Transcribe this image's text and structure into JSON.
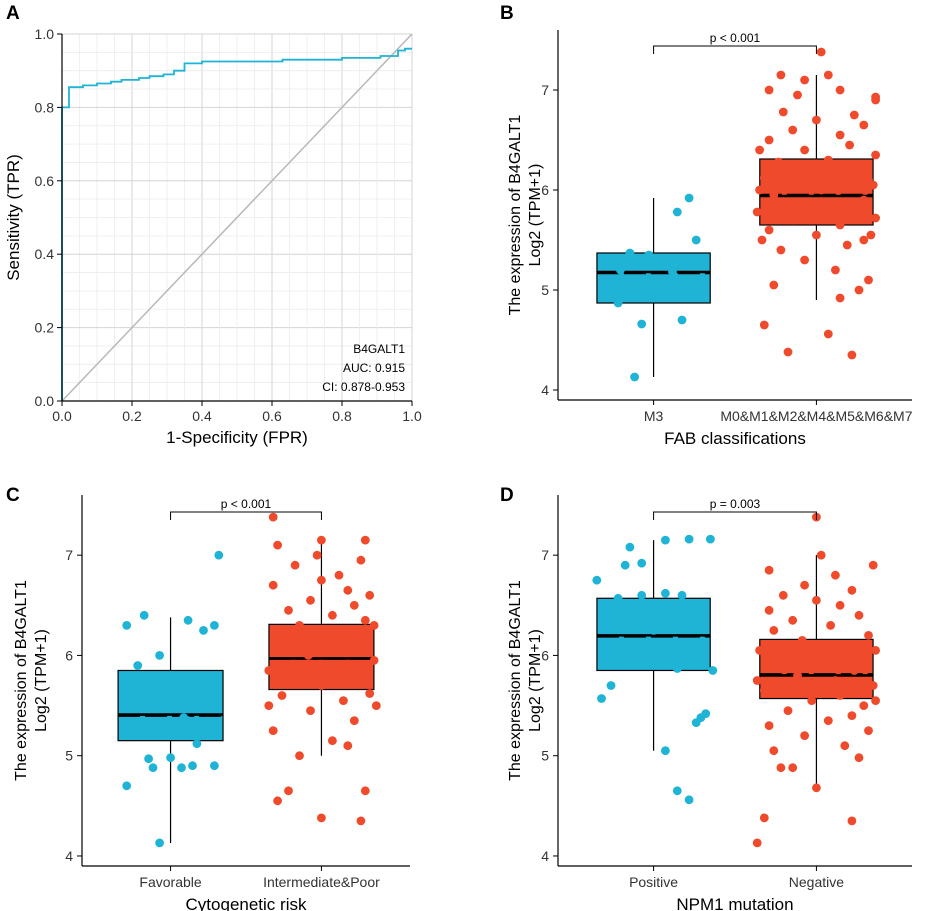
{
  "chart_data": [
    {
      "panel": "A",
      "type": "line",
      "subtype": "roc",
      "xlabel": "1-Specificity (FPR)",
      "ylabel": "Sensitivity (TPR)",
      "xlim": [
        0,
        1
      ],
      "ylim": [
        0,
        1
      ],
      "xticks": [
        "0.0",
        "0.2",
        "0.4",
        "0.6",
        "0.8",
        "1.0"
      ],
      "yticks": [
        "0.0",
        "0.2",
        "0.4",
        "0.6",
        "0.8",
        "1.0"
      ],
      "grid": true,
      "marker": "B4GALT1",
      "auc_text": "AUC: 0.915",
      "ci_text": "CI: 0.878-0.953",
      "roc_color": "#1fb4d6",
      "diagonal_color": "#b8b8b8",
      "roc_points": [
        [
          0,
          0
        ],
        [
          0,
          0.8
        ],
        [
          0.02,
          0.8
        ],
        [
          0.02,
          0.855
        ],
        [
          0.06,
          0.855
        ],
        [
          0.06,
          0.86
        ],
        [
          0.1,
          0.86
        ],
        [
          0.1,
          0.865
        ],
        [
          0.14,
          0.865
        ],
        [
          0.14,
          0.87
        ],
        [
          0.17,
          0.87
        ],
        [
          0.17,
          0.875
        ],
        [
          0.22,
          0.875
        ],
        [
          0.22,
          0.88
        ],
        [
          0.25,
          0.88
        ],
        [
          0.25,
          0.885
        ],
        [
          0.29,
          0.885
        ],
        [
          0.29,
          0.89
        ],
        [
          0.32,
          0.89
        ],
        [
          0.32,
          0.9
        ],
        [
          0.35,
          0.9
        ],
        [
          0.35,
          0.92
        ],
        [
          0.4,
          0.92
        ],
        [
          0.4,
          0.925
        ],
        [
          0.63,
          0.925
        ],
        [
          0.63,
          0.93
        ],
        [
          0.8,
          0.93
        ],
        [
          0.8,
          0.935
        ],
        [
          0.91,
          0.935
        ],
        [
          0.91,
          0.94
        ],
        [
          0.96,
          0.94
        ],
        [
          0.96,
          0.955
        ],
        [
          0.98,
          0.955
        ],
        [
          0.98,
          0.96
        ],
        [
          1,
          0.96
        ]
      ]
    },
    {
      "panel": "B",
      "type": "box",
      "xlabel": "FAB classifications",
      "ylabel_line1": "The expression of B4GALT1",
      "ylabel_line2": "Log2 (TPM+1)",
      "ylim": [
        3.9,
        7.6
      ],
      "yticks": [
        "4",
        "5",
        "6",
        "7"
      ],
      "pvalue": "p < 0.001",
      "groups": [
        {
          "name": "M3",
          "color": "#1fb4d6",
          "q1": 4.87,
          "median": 5.18,
          "mean": 5.17,
          "q3": 5.37,
          "whisker_low": 4.13,
          "whisker_high": 5.92,
          "points": [
            [
              -0.08,
              4.13
            ],
            [
              -0.15,
              4.87
            ],
            [
              -0.12,
              5.0
            ],
            [
              -0.05,
              4.66
            ],
            [
              0.12,
              4.7
            ],
            [
              -0.1,
              5.37
            ],
            [
              -0.02,
              5.35
            ],
            [
              0.05,
              5.3
            ],
            [
              0.08,
              5.18
            ],
            [
              0.18,
              5.5
            ],
            [
              0.1,
              5.78
            ],
            [
              0.15,
              5.92
            ],
            [
              -0.14,
              5.2
            ]
          ]
        },
        {
          "name": "M0&M1&M2&M4&M5&M6&M7",
          "color": "#f04a2c",
          "q1": 5.65,
          "median": 5.94,
          "mean": 5.95,
          "q3": 6.31,
          "whisker_low": 4.9,
          "whisker_high": 7.15,
          "points": [
            [
              -0.12,
              4.38
            ],
            [
              0.15,
              4.35
            ],
            [
              0.05,
              4.56
            ],
            [
              -0.22,
              4.65
            ],
            [
              0.18,
              5.0
            ],
            [
              0.1,
              4.92
            ],
            [
              -0.18,
              5.05
            ],
            [
              0.22,
              5.1
            ],
            [
              -0.05,
              5.3
            ],
            [
              0.08,
              5.2
            ],
            [
              0.13,
              5.45
            ],
            [
              -0.15,
              5.4
            ],
            [
              0.2,
              5.5
            ],
            [
              -0.2,
              5.6
            ],
            [
              0.0,
              5.55
            ],
            [
              0.1,
              5.65
            ],
            [
              -0.1,
              5.7
            ],
            [
              0.25,
              5.72
            ],
            [
              -0.25,
              5.78
            ],
            [
              0.05,
              5.8
            ],
            [
              0.15,
              5.85
            ],
            [
              -0.08,
              5.88
            ],
            [
              0.2,
              5.9
            ],
            [
              -0.18,
              5.95
            ],
            [
              0.02,
              6.0
            ],
            [
              0.12,
              6.02
            ],
            [
              -0.12,
              6.05
            ],
            [
              0.22,
              6.1
            ],
            [
              -0.22,
              6.12
            ],
            [
              0.08,
              6.15
            ],
            [
              -0.03,
              6.2
            ],
            [
              0.18,
              6.25
            ],
            [
              -0.16,
              6.28
            ],
            [
              0.05,
              6.3
            ],
            [
              0.25,
              6.35
            ],
            [
              -0.05,
              6.4
            ],
            [
              0.14,
              6.45
            ],
            [
              -0.2,
              6.5
            ],
            [
              0.1,
              6.55
            ],
            [
              -0.1,
              6.6
            ],
            [
              0.2,
              6.65
            ],
            [
              0.0,
              6.7
            ],
            [
              0.16,
              6.75
            ],
            [
              -0.14,
              6.78
            ],
            [
              0.25,
              6.9
            ],
            [
              0.25,
              6.93
            ],
            [
              -0.08,
              6.95
            ],
            [
              0.1,
              7.0
            ],
            [
              -0.2,
              7.0
            ],
            [
              0.05,
              7.15
            ],
            [
              -0.15,
              7.15
            ],
            [
              -0.05,
              7.1
            ],
            [
              0.02,
              7.38
            ],
            [
              -0.24,
              6.0
            ],
            [
              0.24,
              6.05
            ],
            [
              -0.23,
              5.5
            ],
            [
              0.23,
              5.55
            ],
            [
              -0.24,
              6.4
            ]
          ]
        }
      ]
    },
    {
      "panel": "C",
      "type": "box",
      "xlabel": "Cytogenetic risk",
      "ylabel_line1": "The expression of B4GALT1",
      "ylabel_line2": "Log2 (TPM+1)",
      "ylim": [
        3.9,
        7.6
      ],
      "yticks": [
        "4",
        "5",
        "6",
        "7"
      ],
      "pvalue": "p < 0.001",
      "groups": [
        {
          "name": "Favorable",
          "color": "#1fb4d6",
          "q1": 5.15,
          "median": 5.41,
          "mean": 5.4,
          "q3": 5.85,
          "whisker_low": 4.13,
          "whisker_high": 6.38,
          "points": [
            [
              -0.2,
              4.7
            ],
            [
              -0.05,
              4.13
            ],
            [
              -0.08,
              4.88
            ],
            [
              0.1,
              4.9
            ],
            [
              0.2,
              4.9
            ],
            [
              0.05,
              4.88
            ],
            [
              -0.1,
              4.97
            ],
            [
              0.0,
              4.98
            ],
            [
              0.12,
              5.12
            ],
            [
              0.08,
              5.35
            ],
            [
              0.18,
              5.3
            ],
            [
              -0.15,
              5.9
            ],
            [
              -0.05,
              6.0
            ],
            [
              -0.12,
              6.4
            ],
            [
              -0.2,
              6.3
            ],
            [
              0.08,
              6.35
            ],
            [
              0.2,
              6.3
            ],
            [
              0.22,
              7.0
            ],
            [
              0.15,
              6.25
            ],
            [
              0.06,
              5.38
            ]
          ]
        },
        {
          "name": "Intermediate&Poor",
          "color": "#f04a2c",
          "q1": 5.66,
          "median": 5.97,
          "mean": 5.97,
          "q3": 6.31,
          "whisker_low": 5.0,
          "whisker_high": 7.15,
          "points": [
            [
              -0.15,
              4.65
            ],
            [
              0.0,
              4.38
            ],
            [
              0.18,
              4.35
            ],
            [
              -0.2,
              4.55
            ],
            [
              0.2,
              4.65
            ],
            [
              -0.1,
              5.0
            ],
            [
              0.12,
              5.1
            ],
            [
              0.05,
              5.15
            ],
            [
              -0.22,
              5.25
            ],
            [
              0.15,
              5.35
            ],
            [
              -0.05,
              5.45
            ],
            [
              0.1,
              5.55
            ],
            [
              -0.18,
              5.6
            ],
            [
              0.22,
              5.62
            ],
            [
              0.0,
              5.7
            ],
            [
              -0.12,
              5.75
            ],
            [
              0.16,
              5.8
            ],
            [
              -0.24,
              5.85
            ],
            [
              0.08,
              5.9
            ],
            [
              0.24,
              5.95
            ],
            [
              -0.06,
              6.0
            ],
            [
              0.14,
              6.05
            ],
            [
              -0.16,
              6.1
            ],
            [
              0.2,
              6.12
            ],
            [
              0.02,
              6.18
            ],
            [
              -0.2,
              6.22
            ],
            [
              0.1,
              6.25
            ],
            [
              -0.1,
              6.3
            ],
            [
              0.2,
              6.35
            ],
            [
              0.05,
              6.4
            ],
            [
              -0.15,
              6.45
            ],
            [
              0.15,
              6.5
            ],
            [
              -0.05,
              6.55
            ],
            [
              0.22,
              6.6
            ],
            [
              0.12,
              6.65
            ],
            [
              -0.22,
              6.7
            ],
            [
              0.0,
              6.75
            ],
            [
              0.08,
              6.8
            ],
            [
              -0.12,
              6.9
            ],
            [
              0.18,
              6.95
            ],
            [
              -0.02,
              7.0
            ],
            [
              0.0,
              7.15
            ],
            [
              0.2,
              7.15
            ],
            [
              -0.2,
              7.1
            ],
            [
              -0.22,
              7.38
            ],
            [
              -0.24,
              5.5
            ],
            [
              0.24,
              6.3
            ],
            [
              0.25,
              5.5
            ]
          ]
        }
      ]
    },
    {
      "panel": "D",
      "type": "box",
      "xlabel": "NPM1 mutation",
      "ylabel_line1": "The expression of B4GALT1",
      "ylabel_line2": "Log2 (TPM+1)",
      "ylim": [
        3.9,
        7.6
      ],
      "yticks": [
        "4",
        "5",
        "6",
        "7"
      ],
      "pvalue": "p = 0.003",
      "groups": [
        {
          "name": "Positive",
          "color": "#1fb4d6",
          "q1": 5.85,
          "median": 6.2,
          "mean": 6.19,
          "q3": 6.57,
          "whisker_low": 5.05,
          "whisker_high": 7.15,
          "points": [
            [
              -0.22,
              5.57
            ],
            [
              -0.18,
              5.7
            ],
            [
              0.1,
              4.65
            ],
            [
              0.15,
              4.56
            ],
            [
              0.05,
              5.05
            ],
            [
              0.2,
              5.38
            ],
            [
              0.22,
              5.42
            ],
            [
              0.18,
              5.33
            ],
            [
              0.25,
              5.85
            ],
            [
              0.1,
              5.87
            ],
            [
              -0.2,
              6.1
            ],
            [
              0.0,
              6.25
            ],
            [
              -0.24,
              6.75
            ],
            [
              -0.15,
              6.57
            ],
            [
              -0.05,
              6.6
            ],
            [
              0.05,
              6.62
            ],
            [
              0.12,
              6.6
            ],
            [
              -0.1,
              7.08
            ],
            [
              -0.05,
              6.92
            ],
            [
              0.15,
              7.16
            ],
            [
              0.24,
              7.16
            ],
            [
              0.05,
              7.15
            ],
            [
              -0.12,
              6.9
            ]
          ]
        },
        {
          "name": "Negative",
          "color": "#f04a2c",
          "q1": 5.57,
          "median": 5.8,
          "mean": 5.81,
          "q3": 6.16,
          "whisker_low": 4.68,
          "whisker_high": 7.0,
          "points": [
            [
              -0.25,
              4.13
            ],
            [
              -0.22,
              4.38
            ],
            [
              0.15,
              4.35
            ],
            [
              -0.15,
              4.88
            ],
            [
              -0.1,
              4.88
            ],
            [
              0.0,
              4.68
            ],
            [
              0.18,
              4.98
            ],
            [
              -0.18,
              5.05
            ],
            [
              0.12,
              5.1
            ],
            [
              -0.05,
              5.2
            ],
            [
              0.22,
              5.25
            ],
            [
              -0.2,
              5.3
            ],
            [
              0.05,
              5.35
            ],
            [
              0.15,
              5.4
            ],
            [
              -0.12,
              5.45
            ],
            [
              0.2,
              5.5
            ],
            [
              -0.02,
              5.55
            ],
            [
              0.1,
              5.6
            ],
            [
              -0.22,
              5.65
            ],
            [
              0.24,
              5.7
            ],
            [
              0.08,
              5.75
            ],
            [
              -0.08,
              5.8
            ],
            [
              0.16,
              5.85
            ],
            [
              -0.16,
              5.9
            ],
            [
              0.02,
              5.95
            ],
            [
              0.2,
              6.0
            ],
            [
              -0.24,
              6.05
            ],
            [
              0.12,
              6.1
            ],
            [
              -0.06,
              6.15
            ],
            [
              0.22,
              6.2
            ],
            [
              -0.18,
              6.25
            ],
            [
              0.06,
              6.3
            ],
            [
              -0.1,
              6.35
            ],
            [
              0.18,
              6.4
            ],
            [
              -0.2,
              6.45
            ],
            [
              0.1,
              6.5
            ],
            [
              0.0,
              6.55
            ],
            [
              -0.14,
              6.6
            ],
            [
              0.15,
              6.65
            ],
            [
              -0.05,
              6.7
            ],
            [
              0.08,
              6.8
            ],
            [
              -0.2,
              6.85
            ],
            [
              0.24,
              6.9
            ],
            [
              0.02,
              7.0
            ],
            [
              0.0,
              7.38
            ],
            [
              0.25,
              5.55
            ],
            [
              -0.25,
              5.75
            ],
            [
              0.25,
              6.05
            ]
          ]
        }
      ]
    }
  ]
}
